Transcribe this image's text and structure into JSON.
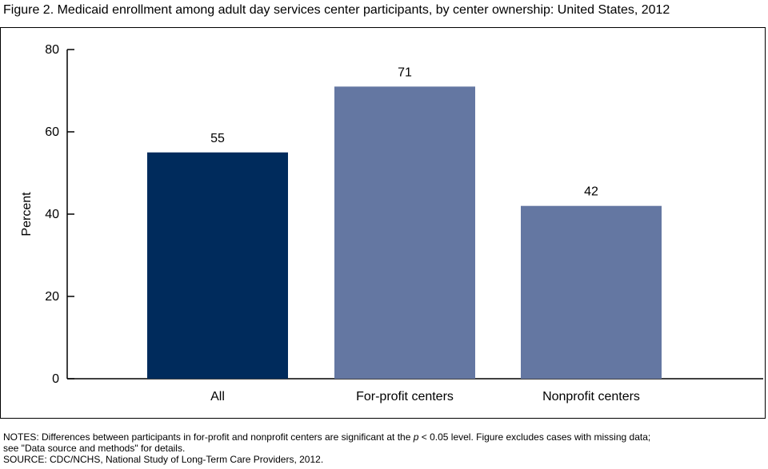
{
  "figure": {
    "title": "Figure 2. Medicaid enrollment among adult day services center participants, by center ownership: United States, 2012"
  },
  "colors": {
    "highlight": "#002b5c",
    "standard": "#6477a2"
  },
  "chart_data": {
    "type": "bar",
    "title": "",
    "xlabel": "",
    "ylabel": "Percent",
    "ylim": [
      0,
      80
    ],
    "yticks": [
      0,
      20,
      40,
      60,
      80
    ],
    "grid": false,
    "legend": "none",
    "categories": [
      "All",
      "For-profit centers",
      "Nonprofit centers"
    ],
    "values": [
      55,
      71,
      42
    ],
    "value_labels": [
      "55",
      "71",
      "42"
    ],
    "bar_colors": [
      "#002b5c",
      "#6477a2",
      "#6477a2"
    ]
  },
  "notes": {
    "line1_before": "NOTES: Differences between participants in for-profit and nonprofit centers are significant at the ",
    "line1_p": "p",
    "line1_after": " < 0.05 level. Figure excludes cases with missing data;",
    "line2": "see \"Data source and methods\" for details.",
    "source": "SOURCE: CDC/NCHS, National Study of Long-Term Care Providers, 2012."
  }
}
